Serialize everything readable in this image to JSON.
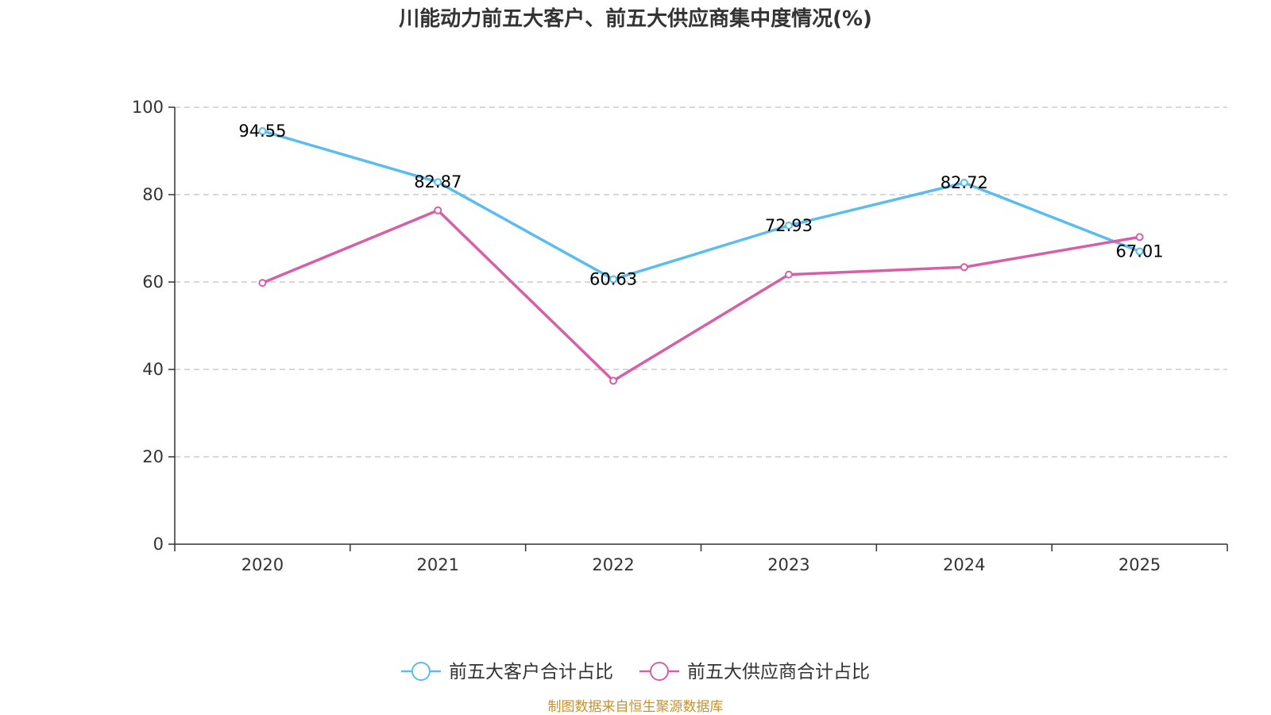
{
  "chart_data": {
    "type": "line",
    "title": "川能动力前五大客户、前五大供应商集中度情况(%)",
    "categories": [
      "2020",
      "2021",
      "2022",
      "2023",
      "2024",
      "2025"
    ],
    "ylim": [
      0,
      100
    ],
    "yticks": [
      "0",
      "20",
      "40",
      "60",
      "80",
      "100"
    ],
    "ytick_values": [
      0,
      20,
      40,
      60,
      80,
      100
    ],
    "xlabel": "",
    "ylabel": "",
    "grid": "horizontal-dashed",
    "legend_position": "bottom-center",
    "series": [
      {
        "name": "前五大客户合计占比",
        "color": "#5bbcf0",
        "values": [
          94.55,
          82.87,
          60.63,
          72.93,
          82.72,
          67.01
        ],
        "labels": [
          "94.55",
          "82.87",
          "60.63",
          "72.93",
          "82.72",
          "67.01"
        ]
      },
      {
        "name": "前五大供应商合计占比",
        "color": "#d65fa8",
        "values": [
          59.8,
          76.4,
          37.4,
          61.7,
          63.4,
          70.3
        ],
        "labels": []
      }
    ],
    "source": "制图数据来自恒生聚源数据库"
  }
}
